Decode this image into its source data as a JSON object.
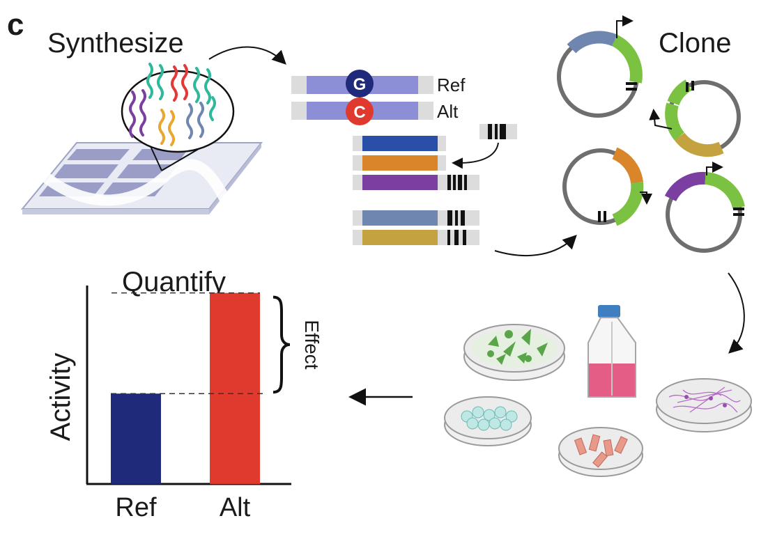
{
  "panel_letter": "c",
  "steps": {
    "synthesize": "Synthesize",
    "clone": "Clone",
    "quantify": "Quantify"
  },
  "alleles": {
    "ref_base": "G",
    "alt_base": "C",
    "ref_label": "Ref",
    "alt_label": "Alt"
  },
  "chart_data": {
    "type": "bar",
    "categories": [
      "Ref",
      "Alt"
    ],
    "values": [
      0.44,
      0.93
    ],
    "ylabel": "Activity",
    "ylim": [
      0,
      1
    ],
    "annotation": "Effect",
    "colors": [
      "#1f2a7a",
      "#e03a2f"
    ]
  },
  "colors": {
    "ref_bar": "#1f2a7a",
    "alt_bar": "#e03a2f",
    "oligo_blue": "#2a4fa8",
    "oligo_orange": "#d9862a",
    "oligo_purple": "#7a3fa0",
    "oligo_slate": "#6f86b0",
    "oligo_gold": "#c4a23f",
    "plasmid_green": "#7cc242",
    "lavender": "#8d8fd6"
  },
  "icons": [
    "microarray-slide-icon",
    "oligo-pool-icon",
    "plasmid-icon",
    "petri-dish-icon",
    "culture-flask-icon",
    "promoter-arrow-icon"
  ]
}
